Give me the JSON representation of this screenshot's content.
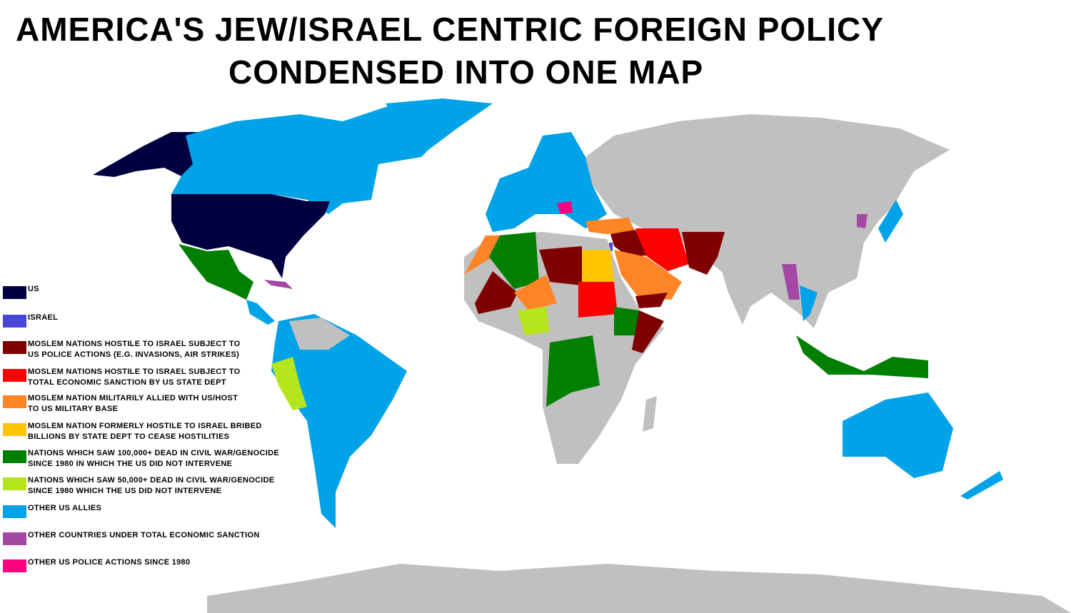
{
  "title": {
    "line1": "AMERICA'S JEW/ISRAEL CENTRIC FOREIGN  POLICY",
    "line2": "CONDENSED INTO ONE MAP"
  },
  "colors": {
    "us": "#000040",
    "israel": "#4646d8",
    "hostile_police": "#7f0000",
    "hostile_sanction": "#ff0000",
    "allied": "#ff8426",
    "bribed": "#ffc400",
    "dead100k": "#007f00",
    "dead50k": "#b5e61d",
    "allies": "#00a2e8",
    "sanction_other": "#a349a4",
    "police_other": "#ff0080",
    "other": "#c0c0c0",
    "ocean": "#ffffff"
  },
  "legend": [
    {
      "key": "us",
      "label": "US"
    },
    {
      "key": "israel",
      "label": "ISRAEL"
    },
    {
      "key": "hostile_police",
      "label": "MOSLEM NATIONS HOSTILE TO ISRAEL SUBJECT TO\nUS POLICE ACTIONS (E.G. INVASIONS, AIR STRIKES)"
    },
    {
      "key": "hostile_sanction",
      "label": "MOSLEM NATIONS HOSTILE TO ISRAEL SUBJECT TO\nTOTAL ECONOMIC SANCTION BY US STATE DEPT"
    },
    {
      "key": "allied",
      "label": "MOSLEM NATION MILITARILY ALLIED WITH US/HOST\nTO US MILITARY BASE"
    },
    {
      "key": "bribed",
      "label": "MOSLEM NATION FORMERLY HOSTILE TO ISRAEL BRIBED\nBILLIONS BY STATE DEPT TO CEASE HOSTILITIES"
    },
    {
      "key": "dead100k",
      "label": "NATIONS WHICH SAW 100,000+ DEAD IN CIVIL WAR/GENOCIDE\nSINCE 1980 IN WHICH THE US DID NOT INTERVENE"
    },
    {
      "key": "dead50k",
      "label": "NATIONS WHICH SAW 50,000+ DEAD IN CIVIL WAR/GENOCIDE\nSINCE 1980 WHICH THE US DID NOT INTERVENE"
    },
    {
      "key": "allies",
      "label": "OTHER US ALLIES"
    },
    {
      "key": "sanction_other",
      "label": "OTHER COUNTRIES UNDER TOTAL ECONOMIC SANCTION"
    },
    {
      "key": "police_other",
      "label": "OTHER US POLICE ACTIONS SINCE 1980"
    }
  ]
}
